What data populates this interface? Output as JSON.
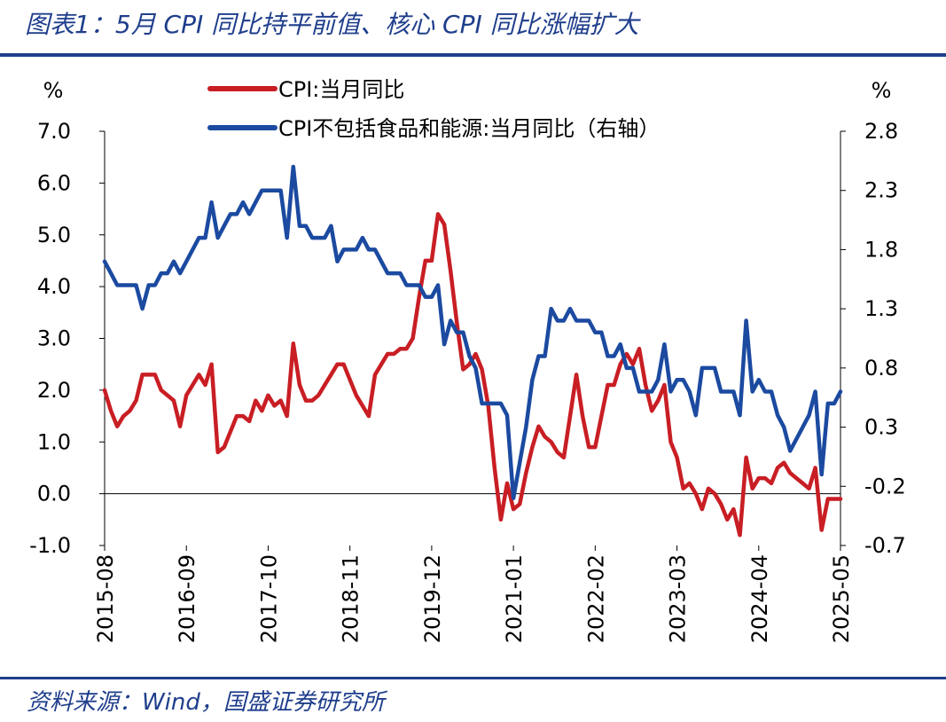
{
  "figure": {
    "title": "图表1：5月 CPI 同比持平前值、核心 CPI 同比涨幅扩大",
    "source": "资料来源：Wind，国盛证券研究所"
  },
  "colors": {
    "cpi": "#c81e24",
    "core": "#1b4aa0",
    "brand": "#1f3e8c"
  },
  "chart_data": {
    "type": "line",
    "legend_position": "top",
    "grid": false,
    "left_axis": {
      "unit": "%",
      "ylim": [
        -1.0,
        7.0
      ],
      "ticks": [
        "7.0",
        "6.0",
        "5.0",
        "4.0",
        "3.0",
        "2.0",
        "1.0",
        "0.0",
        "-1.0"
      ]
    },
    "right_axis": {
      "unit": "%",
      "ylim": [
        -0.7,
        2.8
      ],
      "ticks": [
        "2.8",
        "2.3",
        "1.8",
        "1.3",
        "0.8",
        "0.3",
        "-0.2",
        "-0.7"
      ]
    },
    "x_ticks": [
      "2015-08",
      "2016-09",
      "2017-10",
      "2018-11",
      "2019-12",
      "2021-01",
      "2022-02",
      "2023-03",
      "2024-04",
      "2025-05"
    ],
    "series": [
      {
        "name": "CPI:当月同比",
        "axis": "left",
        "points": [
          [
            "2015-08",
            2.0
          ],
          [
            "2015-09",
            1.6
          ],
          [
            "2015-10",
            1.3
          ],
          [
            "2015-11",
            1.5
          ],
          [
            "2015-12",
            1.6
          ],
          [
            "2016-01",
            1.8
          ],
          [
            "2016-02",
            2.3
          ],
          [
            "2016-03",
            2.3
          ],
          [
            "2016-04",
            2.3
          ],
          [
            "2016-05",
            2.0
          ],
          [
            "2016-06",
            1.9
          ],
          [
            "2016-07",
            1.8
          ],
          [
            "2016-08",
            1.3
          ],
          [
            "2016-09",
            1.9
          ],
          [
            "2016-10",
            2.1
          ],
          [
            "2016-11",
            2.3
          ],
          [
            "2016-12",
            2.1
          ],
          [
            "2017-01",
            2.5
          ],
          [
            "2017-02",
            0.8
          ],
          [
            "2017-03",
            0.9
          ],
          [
            "2017-04",
            1.2
          ],
          [
            "2017-05",
            1.5
          ],
          [
            "2017-06",
            1.5
          ],
          [
            "2017-07",
            1.4
          ],
          [
            "2017-08",
            1.8
          ],
          [
            "2017-09",
            1.6
          ],
          [
            "2017-10",
            1.9
          ],
          [
            "2017-11",
            1.7
          ],
          [
            "2017-12",
            1.8
          ],
          [
            "2018-01",
            1.5
          ],
          [
            "2018-02",
            2.9
          ],
          [
            "2018-03",
            2.1
          ],
          [
            "2018-04",
            1.8
          ],
          [
            "2018-05",
            1.8
          ],
          [
            "2018-06",
            1.9
          ],
          [
            "2018-07",
            2.1
          ],
          [
            "2018-08",
            2.3
          ],
          [
            "2018-09",
            2.5
          ],
          [
            "2018-10",
            2.5
          ],
          [
            "2018-11",
            2.2
          ],
          [
            "2018-12",
            1.9
          ],
          [
            "2019-01",
            1.7
          ],
          [
            "2019-02",
            1.5
          ],
          [
            "2019-03",
            2.3
          ],
          [
            "2019-04",
            2.5
          ],
          [
            "2019-05",
            2.7
          ],
          [
            "2019-06",
            2.7
          ],
          [
            "2019-07",
            2.8
          ],
          [
            "2019-08",
            2.8
          ],
          [
            "2019-09",
            3.0
          ],
          [
            "2019-10",
            3.8
          ],
          [
            "2019-11",
            4.5
          ],
          [
            "2019-12",
            4.5
          ],
          [
            "2020-01",
            5.4
          ],
          [
            "2020-02",
            5.2
          ],
          [
            "2020-03",
            4.3
          ],
          [
            "2020-04",
            3.3
          ],
          [
            "2020-05",
            2.4
          ],
          [
            "2020-06",
            2.5
          ],
          [
            "2020-07",
            2.7
          ],
          [
            "2020-08",
            2.4
          ],
          [
            "2020-09",
            1.7
          ],
          [
            "2020-10",
            0.5
          ],
          [
            "2020-11",
            -0.5
          ],
          [
            "2020-12",
            0.2
          ],
          [
            "2021-01",
            -0.3
          ],
          [
            "2021-02",
            -0.2
          ],
          [
            "2021-03",
            0.4
          ],
          [
            "2021-04",
            0.9
          ],
          [
            "2021-05",
            1.3
          ],
          [
            "2021-06",
            1.1
          ],
          [
            "2021-07",
            1.0
          ],
          [
            "2021-08",
            0.8
          ],
          [
            "2021-09",
            0.7
          ],
          [
            "2021-10",
            1.5
          ],
          [
            "2021-11",
            2.3
          ],
          [
            "2021-12",
            1.5
          ],
          [
            "2022-01",
            0.9
          ],
          [
            "2022-02",
            0.9
          ],
          [
            "2022-03",
            1.5
          ],
          [
            "2022-04",
            2.1
          ],
          [
            "2022-05",
            2.1
          ],
          [
            "2022-06",
            2.5
          ],
          [
            "2022-07",
            2.7
          ],
          [
            "2022-08",
            2.5
          ],
          [
            "2022-09",
            2.8
          ],
          [
            "2022-10",
            2.1
          ],
          [
            "2022-11",
            1.6
          ],
          [
            "2022-12",
            1.8
          ],
          [
            "2023-01",
            2.1
          ],
          [
            "2023-02",
            1.0
          ],
          [
            "2023-03",
            0.7
          ],
          [
            "2023-04",
            0.1
          ],
          [
            "2023-05",
            0.2
          ],
          [
            "2023-06",
            0.0
          ],
          [
            "2023-07",
            -0.3
          ],
          [
            "2023-08",
            0.1
          ],
          [
            "2023-09",
            0.0
          ],
          [
            "2023-10",
            -0.2
          ],
          [
            "2023-11",
            -0.5
          ],
          [
            "2023-12",
            -0.3
          ],
          [
            "2024-01",
            -0.8
          ],
          [
            "2024-02",
            0.7
          ],
          [
            "2024-03",
            0.1
          ],
          [
            "2024-04",
            0.3
          ],
          [
            "2024-05",
            0.3
          ],
          [
            "2024-06",
            0.2
          ],
          [
            "2024-07",
            0.5
          ],
          [
            "2024-08",
            0.6
          ],
          [
            "2024-09",
            0.4
          ],
          [
            "2024-10",
            0.3
          ],
          [
            "2024-11",
            0.2
          ],
          [
            "2024-12",
            0.1
          ],
          [
            "2025-01",
            0.5
          ],
          [
            "2025-02",
            -0.7
          ],
          [
            "2025-03",
            -0.1
          ],
          [
            "2025-04",
            -0.1
          ],
          [
            "2025-05",
            -0.1
          ]
        ]
      },
      {
        "name": "CPI不包括食品和能源:当月同比（右轴）",
        "axis": "right",
        "points": [
          [
            "2015-08",
            1.7
          ],
          [
            "2015-09",
            1.6
          ],
          [
            "2015-10",
            1.5
          ],
          [
            "2015-11",
            1.5
          ],
          [
            "2015-12",
            1.5
          ],
          [
            "2016-01",
            1.5
          ],
          [
            "2016-02",
            1.3
          ],
          [
            "2016-03",
            1.5
          ],
          [
            "2016-04",
            1.5
          ],
          [
            "2016-05",
            1.6
          ],
          [
            "2016-06",
            1.6
          ],
          [
            "2016-07",
            1.7
          ],
          [
            "2016-08",
            1.6
          ],
          [
            "2016-09",
            1.7
          ],
          [
            "2016-10",
            1.8
          ],
          [
            "2016-11",
            1.9
          ],
          [
            "2016-12",
            1.9
          ],
          [
            "2017-01",
            2.2
          ],
          [
            "2017-02",
            1.9
          ],
          [
            "2017-03",
            2.0
          ],
          [
            "2017-04",
            2.1
          ],
          [
            "2017-05",
            2.1
          ],
          [
            "2017-06",
            2.2
          ],
          [
            "2017-07",
            2.1
          ],
          [
            "2017-08",
            2.2
          ],
          [
            "2017-09",
            2.3
          ],
          [
            "2017-10",
            2.3
          ],
          [
            "2017-11",
            2.3
          ],
          [
            "2017-12",
            2.3
          ],
          [
            "2018-01",
            1.9
          ],
          [
            "2018-02",
            2.5
          ],
          [
            "2018-03",
            2.0
          ],
          [
            "2018-04",
            2.0
          ],
          [
            "2018-05",
            1.9
          ],
          [
            "2018-06",
            1.9
          ],
          [
            "2018-07",
            1.9
          ],
          [
            "2018-08",
            2.0
          ],
          [
            "2018-09",
            1.7
          ],
          [
            "2018-10",
            1.8
          ],
          [
            "2018-11",
            1.8
          ],
          [
            "2018-12",
            1.8
          ],
          [
            "2019-01",
            1.9
          ],
          [
            "2019-02",
            1.8
          ],
          [
            "2019-03",
            1.8
          ],
          [
            "2019-04",
            1.7
          ],
          [
            "2019-05",
            1.6
          ],
          [
            "2019-06",
            1.6
          ],
          [
            "2019-07",
            1.6
          ],
          [
            "2019-08",
            1.5
          ],
          [
            "2019-09",
            1.5
          ],
          [
            "2019-10",
            1.5
          ],
          [
            "2019-11",
            1.4
          ],
          [
            "2019-12",
            1.4
          ],
          [
            "2020-01",
            1.5
          ],
          [
            "2020-02",
            1.0
          ],
          [
            "2020-03",
            1.2
          ],
          [
            "2020-04",
            1.1
          ],
          [
            "2020-05",
            1.1
          ],
          [
            "2020-06",
            0.9
          ],
          [
            "2020-07",
            0.8
          ],
          [
            "2020-08",
            0.5
          ],
          [
            "2020-09",
            0.5
          ],
          [
            "2020-10",
            0.5
          ],
          [
            "2020-11",
            0.5
          ],
          [
            "2020-12",
            0.4
          ],
          [
            "2021-01",
            -0.3
          ],
          [
            "2021-02",
            0.0
          ],
          [
            "2021-03",
            0.3
          ],
          [
            "2021-04",
            0.7
          ],
          [
            "2021-05",
            0.9
          ],
          [
            "2021-06",
            0.9
          ],
          [
            "2021-07",
            1.3
          ],
          [
            "2021-08",
            1.2
          ],
          [
            "2021-09",
            1.2
          ],
          [
            "2021-10",
            1.3
          ],
          [
            "2021-11",
            1.2
          ],
          [
            "2021-12",
            1.2
          ],
          [
            "2022-01",
            1.2
          ],
          [
            "2022-02",
            1.1
          ],
          [
            "2022-03",
            1.1
          ],
          [
            "2022-04",
            0.9
          ],
          [
            "2022-05",
            0.9
          ],
          [
            "2022-06",
            1.0
          ],
          [
            "2022-07",
            0.8
          ],
          [
            "2022-08",
            0.8
          ],
          [
            "2022-09",
            0.6
          ],
          [
            "2022-10",
            0.6
          ],
          [
            "2022-11",
            0.6
          ],
          [
            "2022-12",
            0.7
          ],
          [
            "2023-01",
            1.0
          ],
          [
            "2023-02",
            0.6
          ],
          [
            "2023-03",
            0.7
          ],
          [
            "2023-04",
            0.7
          ],
          [
            "2023-05",
            0.6
          ],
          [
            "2023-06",
            0.4
          ],
          [
            "2023-07",
            0.8
          ],
          [
            "2023-08",
            0.8
          ],
          [
            "2023-09",
            0.8
          ],
          [
            "2023-10",
            0.6
          ],
          [
            "2023-11",
            0.6
          ],
          [
            "2023-12",
            0.6
          ],
          [
            "2024-01",
            0.4
          ],
          [
            "2024-02",
            1.2
          ],
          [
            "2024-03",
            0.6
          ],
          [
            "2024-04",
            0.7
          ],
          [
            "2024-05",
            0.6
          ],
          [
            "2024-06",
            0.6
          ],
          [
            "2024-07",
            0.4
          ],
          [
            "2024-08",
            0.3
          ],
          [
            "2024-09",
            0.1
          ],
          [
            "2024-10",
            0.2
          ],
          [
            "2024-11",
            0.3
          ],
          [
            "2024-12",
            0.4
          ],
          [
            "2025-01",
            0.6
          ],
          [
            "2025-02",
            -0.1
          ],
          [
            "2025-03",
            0.5
          ],
          [
            "2025-04",
            0.5
          ],
          [
            "2025-05",
            0.6
          ]
        ]
      }
    ]
  }
}
